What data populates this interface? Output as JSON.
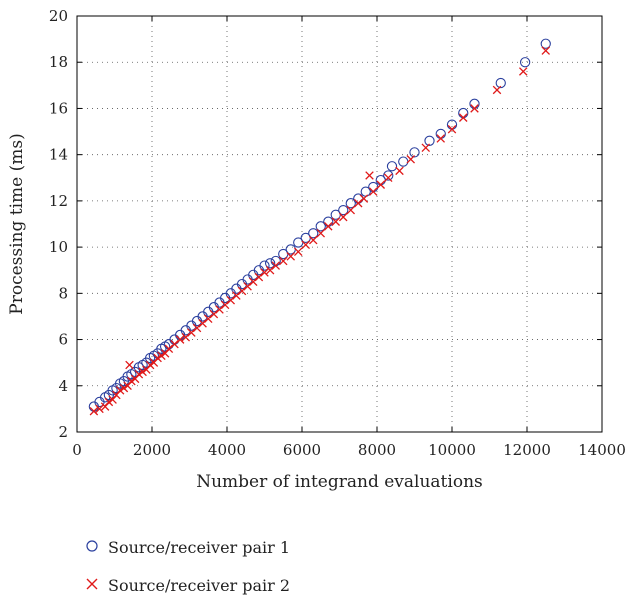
{
  "chart_data": {
    "type": "scatter",
    "title": "",
    "xlabel": "Number of integrand evaluations",
    "ylabel": "Processing time (ms)",
    "xlim": [
      0,
      14000
    ],
    "ylim": [
      2,
      20
    ],
    "xticks": [
      0,
      2000,
      4000,
      6000,
      8000,
      10000,
      12000,
      14000
    ],
    "yticks": [
      2,
      4,
      6,
      8,
      10,
      12,
      14,
      16,
      18,
      20
    ],
    "xtick_labels": [
      "0",
      "2000",
      "4000",
      "6000",
      "8000",
      "10000",
      "12000",
      "14000"
    ],
    "ytick_labels": [
      "2",
      "4",
      "6",
      "8",
      "10",
      "12",
      "14",
      "16",
      "18",
      "20"
    ],
    "grid": true,
    "legend_position": "bottom",
    "series": [
      {
        "name": "Source/receiver pair 1",
        "marker": "circle",
        "color": "#2a3f9e",
        "points": [
          [
            450,
            3.1
          ],
          [
            600,
            3.3
          ],
          [
            750,
            3.5
          ],
          [
            850,
            3.6
          ],
          [
            950,
            3.8
          ],
          [
            1050,
            3.9
          ],
          [
            1150,
            4.1
          ],
          [
            1250,
            4.2
          ],
          [
            1350,
            4.4
          ],
          [
            1450,
            4.5
          ],
          [
            1550,
            4.6
          ],
          [
            1650,
            4.8
          ],
          [
            1750,
            4.9
          ],
          [
            1850,
            5.0
          ],
          [
            1950,
            5.2
          ],
          [
            2050,
            5.3
          ],
          [
            2150,
            5.4
          ],
          [
            2250,
            5.6
          ],
          [
            2350,
            5.7
          ],
          [
            2450,
            5.8
          ],
          [
            2600,
            6.0
          ],
          [
            2750,
            6.2
          ],
          [
            2900,
            6.4
          ],
          [
            3050,
            6.6
          ],
          [
            3200,
            6.8
          ],
          [
            3350,
            7.0
          ],
          [
            3500,
            7.2
          ],
          [
            3650,
            7.4
          ],
          [
            3800,
            7.6
          ],
          [
            3950,
            7.8
          ],
          [
            4100,
            8.0
          ],
          [
            4250,
            8.2
          ],
          [
            4400,
            8.4
          ],
          [
            4550,
            8.6
          ],
          [
            4700,
            8.8
          ],
          [
            4850,
            9.0
          ],
          [
            5000,
            9.2
          ],
          [
            5150,
            9.3
          ],
          [
            5300,
            9.4
          ],
          [
            5500,
            9.7
          ],
          [
            5700,
            9.9
          ],
          [
            5900,
            10.2
          ],
          [
            6100,
            10.4
          ],
          [
            6300,
            10.6
          ],
          [
            6500,
            10.9
          ],
          [
            6700,
            11.1
          ],
          [
            6900,
            11.4
          ],
          [
            7100,
            11.6
          ],
          [
            7300,
            11.9
          ],
          [
            7500,
            12.1
          ],
          [
            7700,
            12.4
          ],
          [
            7900,
            12.6
          ],
          [
            8100,
            12.9
          ],
          [
            8300,
            13.1
          ],
          [
            8400,
            13.5
          ],
          [
            8700,
            13.7
          ],
          [
            9000,
            14.1
          ],
          [
            9400,
            14.6
          ],
          [
            9700,
            14.9
          ],
          [
            10000,
            15.3
          ],
          [
            10300,
            15.8
          ],
          [
            10600,
            16.2
          ],
          [
            11300,
            17.1
          ],
          [
            11950,
            18.0
          ],
          [
            12500,
            18.8
          ]
        ]
      },
      {
        "name": "Source/receiver pair 2",
        "marker": "x",
        "color": "#e01919",
        "points": [
          [
            450,
            2.9
          ],
          [
            600,
            3.0
          ],
          [
            750,
            3.1
          ],
          [
            850,
            3.3
          ],
          [
            950,
            3.4
          ],
          [
            1050,
            3.6
          ],
          [
            1150,
            3.8
          ],
          [
            1250,
            3.9
          ],
          [
            1350,
            4.0
          ],
          [
            1400,
            4.9
          ],
          [
            1450,
            4.2
          ],
          [
            1550,
            4.3
          ],
          [
            1650,
            4.5
          ],
          [
            1750,
            4.6
          ],
          [
            1850,
            4.7
          ],
          [
            1950,
            4.9
          ],
          [
            2050,
            5.0
          ],
          [
            2150,
            5.2
          ],
          [
            2250,
            5.3
          ],
          [
            2350,
            5.4
          ],
          [
            2450,
            5.6
          ],
          [
            2600,
            5.8
          ],
          [
            2750,
            6.0
          ],
          [
            2900,
            6.1
          ],
          [
            3050,
            6.3
          ],
          [
            3200,
            6.5
          ],
          [
            3350,
            6.7
          ],
          [
            3500,
            6.9
          ],
          [
            3650,
            7.1
          ],
          [
            3800,
            7.3
          ],
          [
            3950,
            7.5
          ],
          [
            4100,
            7.7
          ],
          [
            4250,
            7.9
          ],
          [
            4400,
            8.1
          ],
          [
            4550,
            8.3
          ],
          [
            4700,
            8.5
          ],
          [
            4850,
            8.7
          ],
          [
            5000,
            8.9
          ],
          [
            5150,
            9.0
          ],
          [
            5300,
            9.2
          ],
          [
            5500,
            9.4
          ],
          [
            5700,
            9.6
          ],
          [
            5900,
            9.8
          ],
          [
            6100,
            10.1
          ],
          [
            6300,
            10.3
          ],
          [
            6500,
            10.6
          ],
          [
            6700,
            10.9
          ],
          [
            6900,
            11.1
          ],
          [
            7100,
            11.3
          ],
          [
            7300,
            11.6
          ],
          [
            7500,
            11.9
          ],
          [
            7650,
            12.1
          ],
          [
            7800,
            13.1
          ],
          [
            7900,
            12.4
          ],
          [
            8100,
            12.7
          ],
          [
            8300,
            13.0
          ],
          [
            8600,
            13.3
          ],
          [
            8900,
            13.8
          ],
          [
            9300,
            14.3
          ],
          [
            9700,
            14.7
          ],
          [
            10000,
            15.1
          ],
          [
            10300,
            15.6
          ],
          [
            10600,
            16.0
          ],
          [
            11200,
            16.8
          ],
          [
            11900,
            17.6
          ],
          [
            12500,
            18.5
          ]
        ]
      }
    ]
  }
}
